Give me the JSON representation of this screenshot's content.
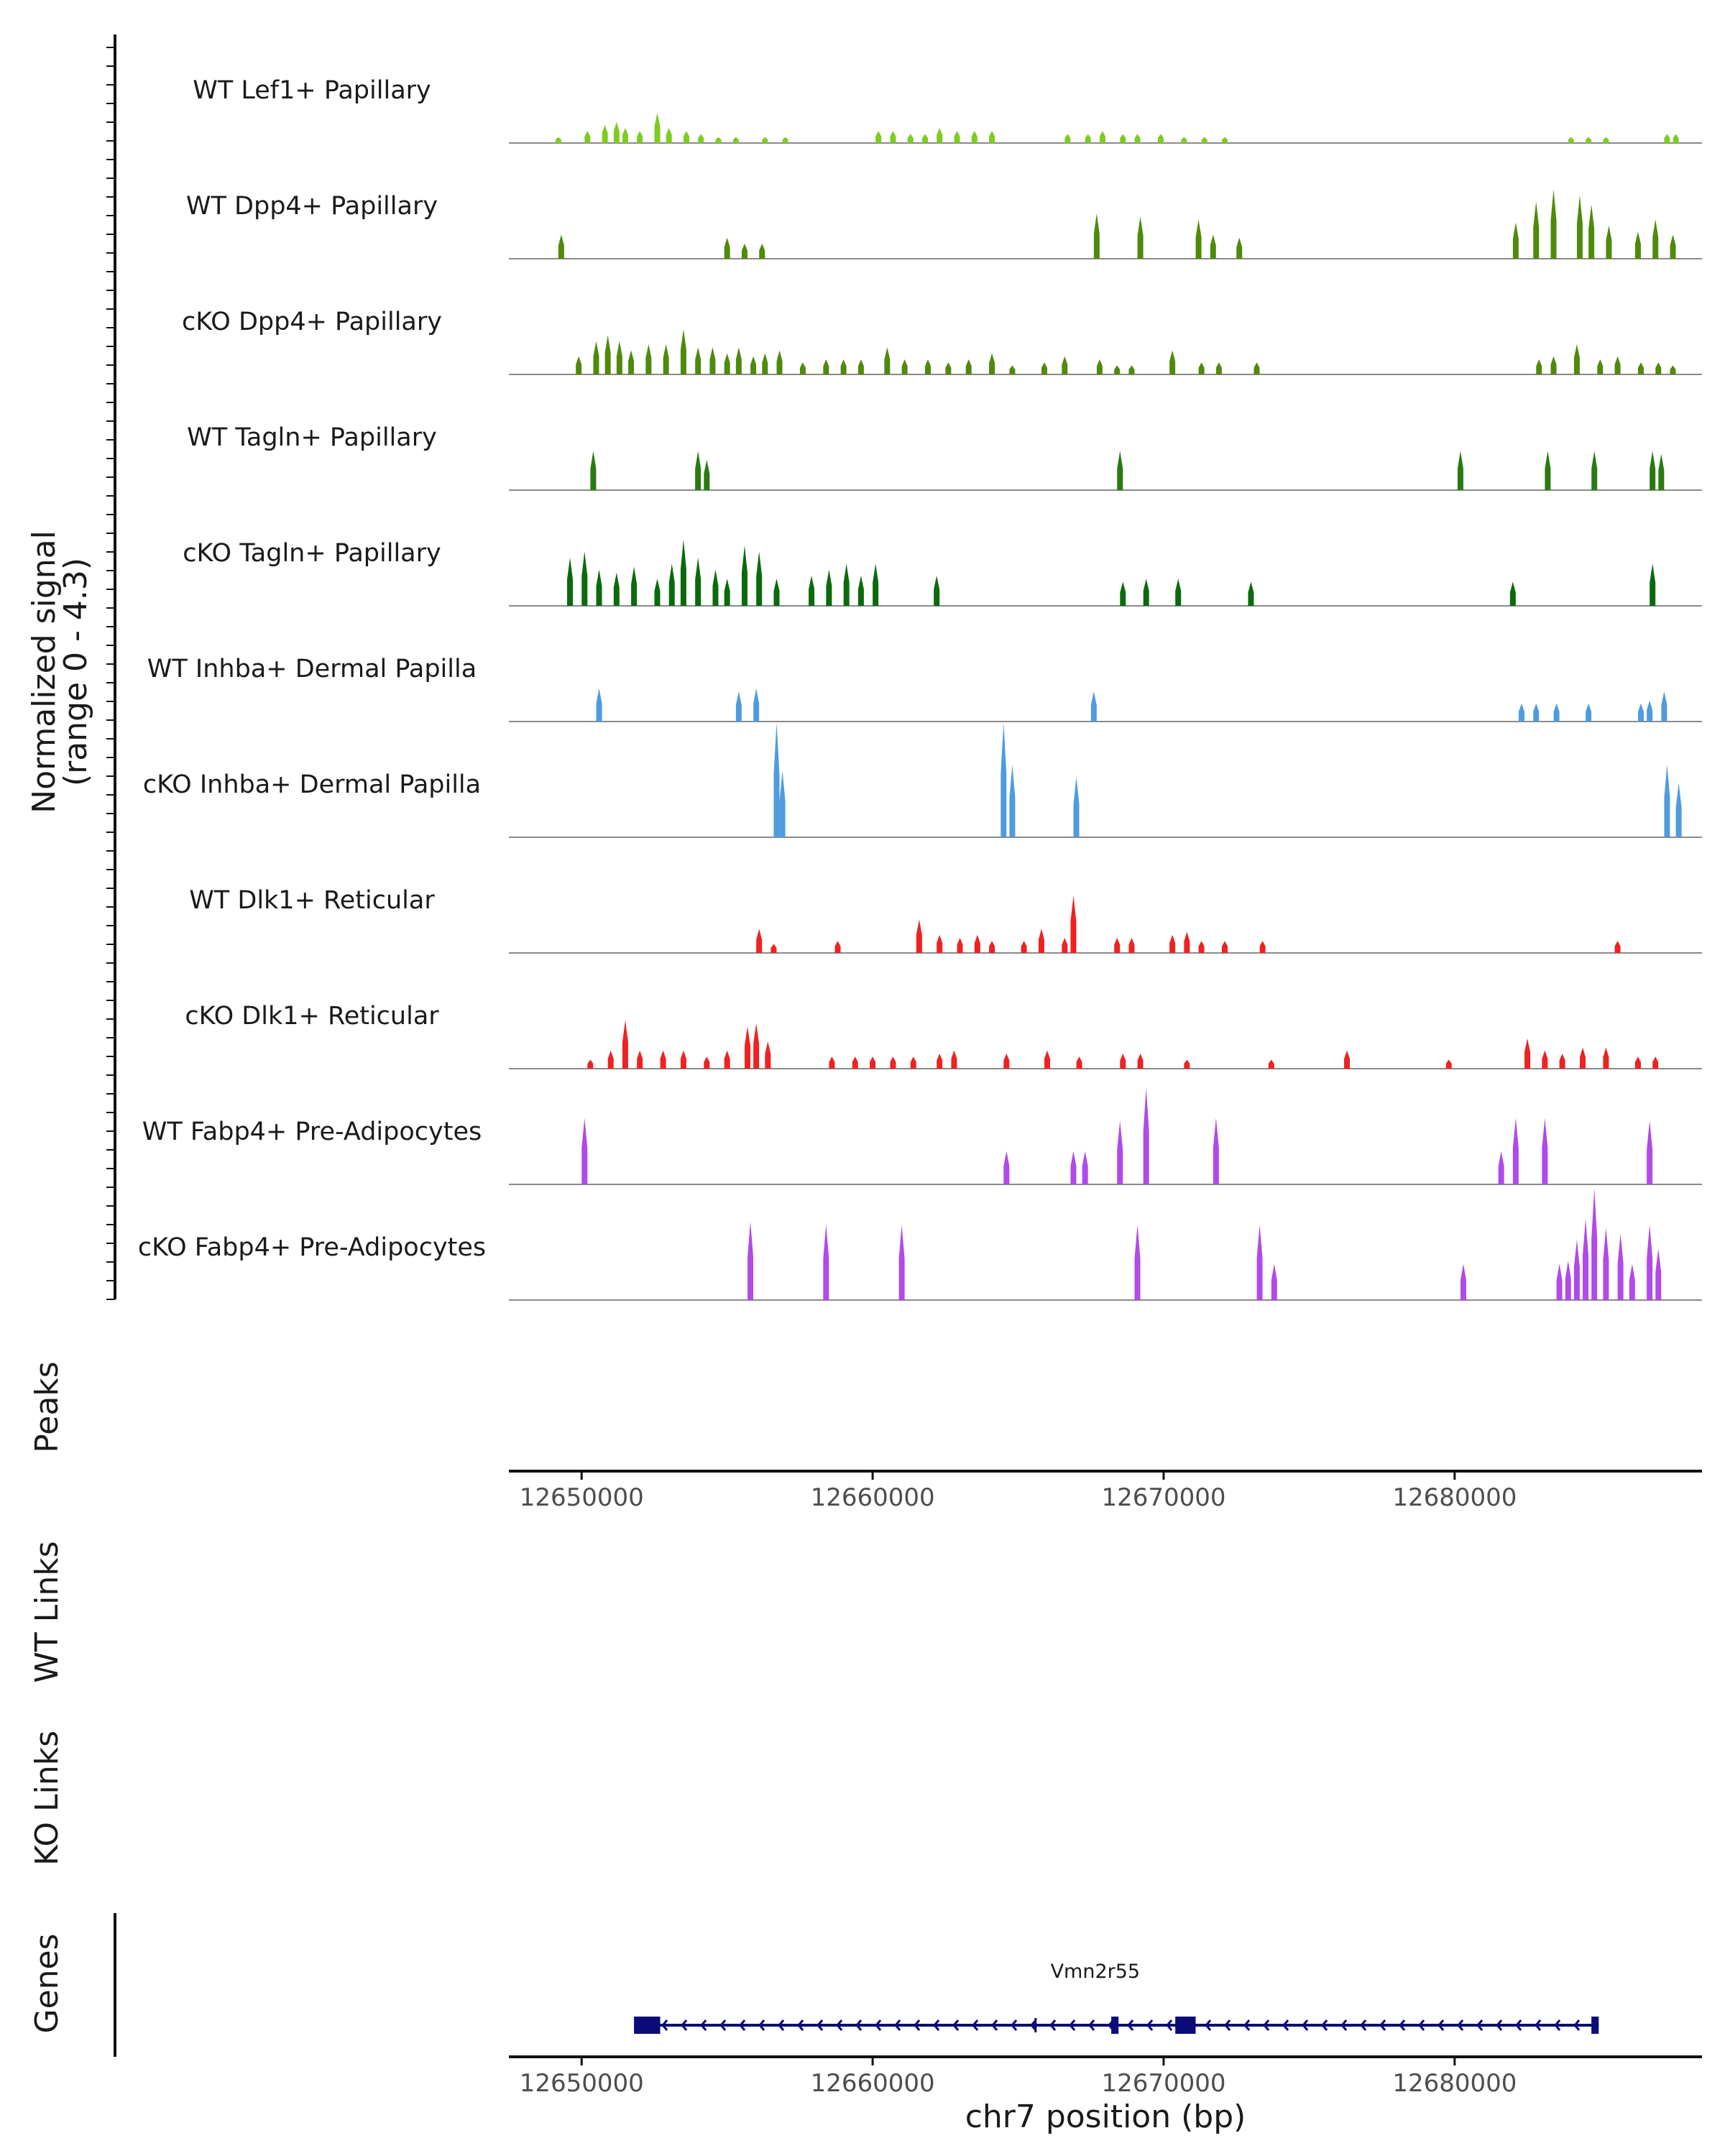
{
  "chart_data": {
    "type": "area",
    "title": "",
    "ylabel": "Normalized signal\n(range 0 - 4.3)",
    "y_range": [
      0,
      4.3
    ],
    "xlabel": "chr7 position (bp)",
    "xlim": [
      12647500,
      12688500
    ],
    "xticks": [
      12650000,
      12660000,
      12670000,
      12680000
    ],
    "panels": [
      "Peaks",
      "WT Links",
      "KO Links",
      "Genes"
    ],
    "tracks": [
      {
        "name": "WT Lef1+ Papillary",
        "color": "#7ccd1f",
        "peaks": [
          [
            12649200,
            0.2
          ],
          [
            12650200,
            0.4
          ],
          [
            12650800,
            0.6
          ],
          [
            12651200,
            0.7
          ],
          [
            12651500,
            0.5
          ],
          [
            12652000,
            0.4
          ],
          [
            12652600,
            1.0
          ],
          [
            12653000,
            0.5
          ],
          [
            12653600,
            0.4
          ],
          [
            12654100,
            0.3
          ],
          [
            12654700,
            0.2
          ],
          [
            12655300,
            0.2
          ],
          [
            12656300,
            0.2
          ],
          [
            12657000,
            0.2
          ],
          [
            12660200,
            0.4
          ],
          [
            12660700,
            0.4
          ],
          [
            12661300,
            0.3
          ],
          [
            12661800,
            0.3
          ],
          [
            12662300,
            0.5
          ],
          [
            12662900,
            0.4
          ],
          [
            12663500,
            0.4
          ],
          [
            12664100,
            0.4
          ],
          [
            12666700,
            0.3
          ],
          [
            12667400,
            0.3
          ],
          [
            12667900,
            0.4
          ],
          [
            12668600,
            0.3
          ],
          [
            12669100,
            0.3
          ],
          [
            12669900,
            0.3
          ],
          [
            12670700,
            0.2
          ],
          [
            12671400,
            0.2
          ],
          [
            12672100,
            0.2
          ],
          [
            12684000,
            0.2
          ],
          [
            12684600,
            0.2
          ],
          [
            12685200,
            0.2
          ],
          [
            12687300,
            0.3
          ],
          [
            12687600,
            0.3
          ]
        ]
      },
      {
        "name": "WT Dpp4+ Papillary",
        "color": "#4f8a0b",
        "peaks": [
          [
            12649300,
            0.8
          ],
          [
            12655000,
            0.7
          ],
          [
            12655600,
            0.5
          ],
          [
            12656200,
            0.5
          ],
          [
            12667700,
            1.5
          ],
          [
            12669200,
            1.4
          ],
          [
            12671200,
            1.3
          ],
          [
            12671700,
            0.8
          ],
          [
            12672600,
            0.7
          ],
          [
            12682100,
            1.2
          ],
          [
            12682800,
            1.9
          ],
          [
            12683400,
            2.3
          ],
          [
            12684300,
            2.1
          ],
          [
            12684700,
            1.8
          ],
          [
            12685300,
            1.1
          ],
          [
            12686300,
            0.9
          ],
          [
            12686900,
            1.3
          ],
          [
            12687500,
            0.8
          ]
        ]
      },
      {
        "name": "cKO Dpp4+ Papillary",
        "color": "#4f8a0b",
        "peaks": [
          [
            12649900,
            0.6
          ],
          [
            12650500,
            1.1
          ],
          [
            12650900,
            1.3
          ],
          [
            12651300,
            1.1
          ],
          [
            12651700,
            0.8
          ],
          [
            12652300,
            1.0
          ],
          [
            12652900,
            1.0
          ],
          [
            12653500,
            1.5
          ],
          [
            12654000,
            0.9
          ],
          [
            12654500,
            0.9
          ],
          [
            12655000,
            0.7
          ],
          [
            12655400,
            0.9
          ],
          [
            12655900,
            0.6
          ],
          [
            12656300,
            0.7
          ],
          [
            12656800,
            0.8
          ],
          [
            12657600,
            0.4
          ],
          [
            12658400,
            0.5
          ],
          [
            12659000,
            0.5
          ],
          [
            12659600,
            0.5
          ],
          [
            12660500,
            0.9
          ],
          [
            12661100,
            0.5
          ],
          [
            12661900,
            0.5
          ],
          [
            12662600,
            0.4
          ],
          [
            12663300,
            0.5
          ],
          [
            12664100,
            0.7
          ],
          [
            12664800,
            0.3
          ],
          [
            12665900,
            0.4
          ],
          [
            12666600,
            0.6
          ],
          [
            12667800,
            0.5
          ],
          [
            12668400,
            0.3
          ],
          [
            12668900,
            0.3
          ],
          [
            12670300,
            0.8
          ],
          [
            12671300,
            0.4
          ],
          [
            12671900,
            0.4
          ],
          [
            12673200,
            0.4
          ],
          [
            12682900,
            0.5
          ],
          [
            12683400,
            0.6
          ],
          [
            12684200,
            1.0
          ],
          [
            12685000,
            0.5
          ],
          [
            12685600,
            0.6
          ],
          [
            12686400,
            0.4
          ],
          [
            12687000,
            0.4
          ],
          [
            12687500,
            0.3
          ]
        ]
      },
      {
        "name": "WT Tagln+ Papillary",
        "color": "#2a7a12",
        "peaks": [
          [
            12650400,
            1.3
          ],
          [
            12654000,
            1.3
          ],
          [
            12654300,
            1.0
          ],
          [
            12668500,
            1.3
          ],
          [
            12680200,
            1.3
          ],
          [
            12683200,
            1.3
          ],
          [
            12684800,
            1.3
          ],
          [
            12686800,
            1.3
          ],
          [
            12687100,
            1.2
          ]
        ]
      },
      {
        "name": "cKO Tagln+ Papillary",
        "color": "#0b6a0b",
        "peaks": [
          [
            12649600,
            1.6
          ],
          [
            12650100,
            1.8
          ],
          [
            12650600,
            1.2
          ],
          [
            12651200,
            1.1
          ],
          [
            12651800,
            1.3
          ],
          [
            12652600,
            0.9
          ],
          [
            12653100,
            1.4
          ],
          [
            12653500,
            2.2
          ],
          [
            12654000,
            1.6
          ],
          [
            12654600,
            1.2
          ],
          [
            12655000,
            0.9
          ],
          [
            12655600,
            2.0
          ],
          [
            12656100,
            1.8
          ],
          [
            12656700,
            0.9
          ],
          [
            12657900,
            1.0
          ],
          [
            12658500,
            1.2
          ],
          [
            12659100,
            1.4
          ],
          [
            12659600,
            1.0
          ],
          [
            12660100,
            1.4
          ],
          [
            12662200,
            1.0
          ],
          [
            12668600,
            0.8
          ],
          [
            12669400,
            0.9
          ],
          [
            12670500,
            0.9
          ],
          [
            12673000,
            0.8
          ],
          [
            12682000,
            0.8
          ],
          [
            12686800,
            1.4
          ]
        ]
      },
      {
        "name": "WT Inhba+ Dermal Papilla",
        "color": "#4f9be0",
        "peaks": [
          [
            12650600,
            1.1
          ],
          [
            12655400,
            1.0
          ],
          [
            12656000,
            1.1
          ],
          [
            12667600,
            1.0
          ],
          [
            12682300,
            0.6
          ],
          [
            12682800,
            0.6
          ],
          [
            12683500,
            0.6
          ],
          [
            12684600,
            0.6
          ],
          [
            12686400,
            0.6
          ],
          [
            12686700,
            0.7
          ],
          [
            12687200,
            1.0
          ]
        ]
      },
      {
        "name": "cKO Inhba+ Dermal Papilla",
        "color": "#4f9be0",
        "peaks": [
          [
            12656700,
            3.8
          ],
          [
            12656900,
            2.2
          ],
          [
            12664500,
            3.8
          ],
          [
            12664800,
            2.4
          ],
          [
            12667000,
            2.0
          ],
          [
            12687300,
            2.4
          ],
          [
            12687700,
            1.8
          ]
        ]
      },
      {
        "name": "WT Dlk1+ Reticular",
        "color": "#ee2222",
        "peaks": [
          [
            12656100,
            0.8
          ],
          [
            12656600,
            0.3
          ],
          [
            12658800,
            0.4
          ],
          [
            12661600,
            1.1
          ],
          [
            12662300,
            0.6
          ],
          [
            12663000,
            0.5
          ],
          [
            12663600,
            0.6
          ],
          [
            12664100,
            0.4
          ],
          [
            12665200,
            0.4
          ],
          [
            12665800,
            0.8
          ],
          [
            12666600,
            0.5
          ],
          [
            12666900,
            1.9
          ],
          [
            12668400,
            0.5
          ],
          [
            12668900,
            0.5
          ],
          [
            12670300,
            0.6
          ],
          [
            12670800,
            0.7
          ],
          [
            12671300,
            0.4
          ],
          [
            12672100,
            0.4
          ],
          [
            12673400,
            0.4
          ],
          [
            12685600,
            0.4
          ]
        ]
      },
      {
        "name": "cKO Dlk1+ Reticular",
        "color": "#ee2222",
        "peaks": [
          [
            12650300,
            0.3
          ],
          [
            12651000,
            0.6
          ],
          [
            12651500,
            1.6
          ],
          [
            12652000,
            0.6
          ],
          [
            12652800,
            0.6
          ],
          [
            12653500,
            0.6
          ],
          [
            12654300,
            0.4
          ],
          [
            12655000,
            0.6
          ],
          [
            12655700,
            1.4
          ],
          [
            12656000,
            1.5
          ],
          [
            12656400,
            0.9
          ],
          [
            12658600,
            0.4
          ],
          [
            12659400,
            0.4
          ],
          [
            12660000,
            0.4
          ],
          [
            12660700,
            0.4
          ],
          [
            12661400,
            0.4
          ],
          [
            12662300,
            0.5
          ],
          [
            12662800,
            0.6
          ],
          [
            12664600,
            0.5
          ],
          [
            12666000,
            0.6
          ],
          [
            12667100,
            0.4
          ],
          [
            12668600,
            0.5
          ],
          [
            12669200,
            0.5
          ],
          [
            12670800,
            0.3
          ],
          [
            12673700,
            0.3
          ],
          [
            12676300,
            0.6
          ],
          [
            12679800,
            0.3
          ],
          [
            12682500,
            1.0
          ],
          [
            12683100,
            0.6
          ],
          [
            12683700,
            0.5
          ],
          [
            12684400,
            0.7
          ],
          [
            12685200,
            0.7
          ],
          [
            12686300,
            0.4
          ],
          [
            12686900,
            0.4
          ]
        ]
      },
      {
        "name": "WT Fabp4+ Pre-Adipocytes",
        "color": "#b04ae8",
        "peaks": [
          [
            12650100,
            2.2
          ],
          [
            12664600,
            1.1
          ],
          [
            12666900,
            1.1
          ],
          [
            12667300,
            1.1
          ],
          [
            12668500,
            2.1
          ],
          [
            12669400,
            3.2
          ],
          [
            12671800,
            2.2
          ],
          [
            12681600,
            1.1
          ],
          [
            12682100,
            2.2
          ],
          [
            12683100,
            2.2
          ],
          [
            12686700,
            2.1
          ]
        ]
      },
      {
        "name": "cKO Fabp4+ Pre-Adipocytes",
        "color": "#b04ae8",
        "peaks": [
          [
            12655800,
            2.6
          ],
          [
            12658400,
            2.5
          ],
          [
            12661000,
            2.5
          ],
          [
            12669100,
            2.5
          ],
          [
            12673300,
            2.5
          ],
          [
            12673800,
            1.2
          ],
          [
            12680300,
            1.2
          ],
          [
            12683600,
            1.2
          ],
          [
            12683900,
            1.3
          ],
          [
            12684200,
            2.0
          ],
          [
            12684500,
            2.7
          ],
          [
            12684800,
            3.7
          ],
          [
            12685200,
            2.4
          ],
          [
            12685700,
            2.2
          ],
          [
            12686100,
            1.2
          ],
          [
            12686700,
            2.5
          ],
          [
            12687000,
            1.7
          ]
        ]
      }
    ],
    "genes": [
      {
        "name": "Vmn2r55",
        "strand": "-",
        "start": 12651800,
        "end": 12684950,
        "exons": [
          [
            12651800,
            12652700
          ],
          [
            12668200,
            12668450
          ],
          [
            12670400,
            12671100
          ],
          [
            12684700,
            12684950
          ]
        ],
        "marks": [
          12665600
        ]
      }
    ]
  }
}
